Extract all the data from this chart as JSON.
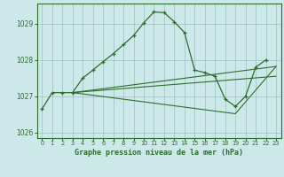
{
  "title": "Graphe pression niveau de la mer (hPa)",
  "background_color": "#cce8e8",
  "grid_color": "#9bbfbf",
  "line_color": "#2d6e2d",
  "xlim": [
    -0.5,
    23.5
  ],
  "ylim": [
    1025.85,
    1029.55
  ],
  "yticks": [
    1026,
    1027,
    1028,
    1029
  ],
  "xtick_labels": [
    "0",
    "1",
    "2",
    "3",
    "4",
    "5",
    "6",
    "7",
    "8",
    "9",
    "10",
    "11",
    "12",
    "13",
    "14",
    "15",
    "16",
    "17",
    "18",
    "19",
    "20",
    "21",
    "22",
    "23"
  ],
  "main_line": {
    "x": [
      0,
      1,
      2,
      3,
      4,
      5,
      6,
      7,
      8,
      9,
      10,
      11,
      12,
      13,
      14,
      15,
      16,
      17,
      18,
      19,
      20,
      21,
      22
    ],
    "y": [
      1026.65,
      1027.1,
      1027.1,
      1027.1,
      1027.5,
      1027.72,
      1027.95,
      1028.17,
      1028.42,
      1028.67,
      1029.02,
      1029.32,
      1029.3,
      1029.05,
      1028.75,
      1027.72,
      1027.65,
      1027.55,
      1026.92,
      1026.72,
      1027.0,
      1027.8,
      1028.0
    ]
  },
  "upper_line": {
    "x": [
      3,
      23
    ],
    "y": [
      1027.1,
      1027.82
    ]
  },
  "mid_line": {
    "x": [
      3,
      23
    ],
    "y": [
      1027.1,
      1027.55
    ]
  },
  "lower_line": {
    "x": [
      3,
      19,
      23
    ],
    "y": [
      1027.1,
      1026.52,
      1027.82
    ]
  }
}
